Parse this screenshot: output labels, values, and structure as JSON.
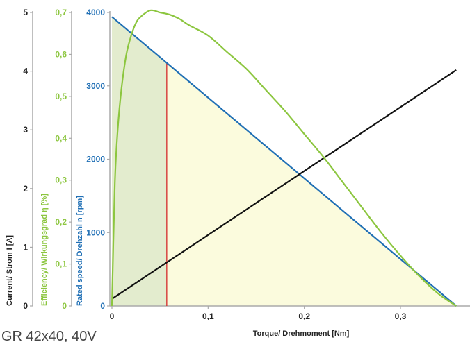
{
  "chart_data": {
    "type": "line",
    "title": "",
    "caption": "GR 42x40, 40V",
    "xlabel": "Torque/ Drehmoment [Nm]",
    "xlim": [
      0,
      0.36
    ],
    "xticks": [
      {
        "value": 0,
        "label": "0"
      },
      {
        "value": 0.1,
        "label": "0,1"
      },
      {
        "value": 0.2,
        "label": "0,2"
      },
      {
        "value": 0.3,
        "label": "0,3"
      }
    ],
    "y_axes": [
      {
        "id": "current",
        "label": "Current/ Strom I [A]",
        "range": [
          0,
          5
        ],
        "color": "#222222",
        "ticks": [
          {
            "value": 0,
            "label": "0"
          },
          {
            "value": 1,
            "label": "1"
          },
          {
            "value": 2,
            "label": "2"
          },
          {
            "value": 3,
            "label": "3"
          },
          {
            "value": 4,
            "label": "4"
          },
          {
            "value": 5,
            "label": "5"
          }
        ]
      },
      {
        "id": "efficiency",
        "label": "Efficiency/ Wirkungsgrad η [%]",
        "range": [
          0,
          0.7
        ],
        "color": "#8cc63f",
        "ticks": [
          {
            "value": 0,
            "label": "0"
          },
          {
            "value": 0.1,
            "label": "0,1"
          },
          {
            "value": 0.2,
            "label": "0,2"
          },
          {
            "value": 0.3,
            "label": "0,3"
          },
          {
            "value": 0.4,
            "label": "0,4"
          },
          {
            "value": 0.5,
            "label": "0,5"
          },
          {
            "value": 0.6,
            "label": "0,6"
          },
          {
            "value": 0.7,
            "label": "0,7"
          }
        ]
      },
      {
        "id": "speed",
        "label": "Rated speed/ Drehzahl n [rpm]",
        "range": [
          0,
          4000
        ],
        "color": "#1f6fb5",
        "ticks": [
          {
            "value": 0,
            "label": "0"
          },
          {
            "value": 1000,
            "label": "1000"
          },
          {
            "value": 2000,
            "label": "2000"
          },
          {
            "value": 3000,
            "label": "3000"
          },
          {
            "value": 4000,
            "label": "4000"
          }
        ]
      }
    ],
    "rated_torque": 0.057,
    "series": [
      {
        "id": "speed",
        "axis": "speed",
        "color": "#1f6fb5",
        "x": [
          0,
          0.358
        ],
        "y": [
          3940,
          0
        ]
      },
      {
        "id": "current",
        "axis": "current",
        "color": "#111111",
        "x": [
          0,
          0.358
        ],
        "y": [
          0.12,
          4.02
        ]
      },
      {
        "id": "efficiency",
        "axis": "efficiency",
        "color": "#8cc63f",
        "x": [
          0,
          0.003,
          0.006,
          0.01,
          0.015,
          0.02,
          0.025,
          0.03,
          0.04,
          0.05,
          0.06,
          0.07,
          0.08,
          0.1,
          0.12,
          0.14,
          0.16,
          0.18,
          0.2,
          0.22,
          0.24,
          0.26,
          0.28,
          0.3,
          0.32,
          0.34,
          0.358
        ],
        "y": [
          0,
          0.29,
          0.42,
          0.52,
          0.6,
          0.645,
          0.675,
          0.69,
          0.705,
          0.7,
          0.695,
          0.685,
          0.67,
          0.645,
          0.605,
          0.565,
          0.515,
          0.465,
          0.41,
          0.355,
          0.295,
          0.235,
          0.175,
          0.12,
          0.07,
          0.028,
          0
        ]
      }
    ],
    "colors": {
      "grid_axis": "#aaaaaa",
      "rated_marker": "#d42a2a",
      "fill_rated": "#e3ecce",
      "fill_overload": "#fbfbdd"
    }
  }
}
